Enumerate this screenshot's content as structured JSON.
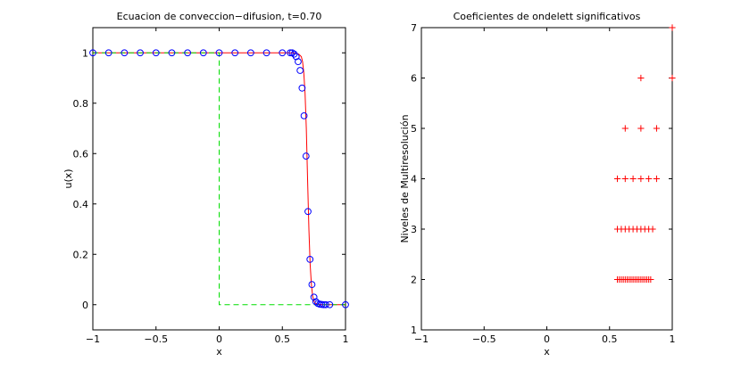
{
  "chart_data": [
    {
      "type": "line",
      "title": "Ecuacion de conveccion−difusion, t=0.70",
      "xlabel": "x",
      "ylabel": "u(x)",
      "xlim": [
        -1,
        1
      ],
      "ylim": [
        -0.1,
        1.1
      ],
      "xticks": [
        -1,
        -0.5,
        0,
        0.5,
        1
      ],
      "xtick_labels": [
        "−1",
        "−0.5",
        "0",
        "0.5",
        "1"
      ],
      "yticks": [
        0,
        0.2,
        0.4,
        0.6,
        0.8,
        1
      ],
      "ytick_labels": [
        "0",
        "0.2",
        "0.4",
        "0.6",
        "0.8",
        "1"
      ],
      "grid": false,
      "legend": "none",
      "series": [
        {
          "style": "solid",
          "color": "#ff0000",
          "x": [
            -1,
            0.55,
            0.6,
            0.63,
            0.65,
            0.66,
            0.67,
            0.68,
            0.69,
            0.7,
            0.71,
            0.72,
            0.73,
            0.74,
            0.75,
            0.76,
            0.78,
            0.82,
            1.0
          ],
          "y": [
            1,
            1,
            0.999,
            0.995,
            0.985,
            0.965,
            0.92,
            0.84,
            0.7,
            0.5,
            0.3,
            0.16,
            0.08,
            0.035,
            0.015,
            0.006,
            0.002,
            0,
            0
          ]
        },
        {
          "style": "dashed",
          "color": "#00dd00",
          "x": [
            -1,
            0,
            0,
            1
          ],
          "y": [
            1,
            1,
            0,
            0
          ]
        },
        {
          "style": "markers",
          "marker": "circle",
          "color": "#0000ff",
          "x": [
            -1.0,
            -0.875,
            -0.75,
            -0.625,
            -0.5,
            -0.375,
            -0.25,
            -0.125,
            0.0,
            0.125,
            0.25,
            0.375,
            0.5,
            0.5625,
            0.5781,
            0.5938,
            0.6094,
            0.625,
            0.6406,
            0.6563,
            0.6719,
            0.6875,
            0.7031,
            0.7188,
            0.7344,
            0.75,
            0.7656,
            0.7813,
            0.7969,
            0.8125,
            0.8281,
            0.8438,
            0.875,
            1.0
          ],
          "y": [
            1,
            1,
            1,
            1,
            1,
            1,
            1,
            1,
            1,
            1,
            1,
            1,
            1,
            1,
            1,
            0.995,
            0.985,
            0.965,
            0.93,
            0.86,
            0.75,
            0.59,
            0.37,
            0.18,
            0.08,
            0.03,
            0.012,
            0.005,
            0.002,
            0.001,
            0,
            0,
            0,
            0
          ]
        }
      ]
    },
    {
      "type": "scatter",
      "title": "Coeficientes de ondelett significativos",
      "xlabel": "x",
      "ylabel": "Niveles de Multiresolución",
      "xlim": [
        -1,
        1
      ],
      "ylim": [
        1,
        7
      ],
      "xticks": [
        -1,
        -0.5,
        0,
        0.5,
        1
      ],
      "xtick_labels": [
        "−1",
        "−0.5",
        "0",
        "0.5",
        "1"
      ],
      "yticks": [
        1,
        2,
        3,
        4,
        5,
        6,
        7
      ],
      "ytick_labels": [
        "1",
        "2",
        "3",
        "4",
        "5",
        "6",
        "7"
      ],
      "grid": false,
      "legend": "none",
      "series": [
        {
          "marker": "plus",
          "color": "#ff0000",
          "x": [
            1.0,
            0.75,
            1.0,
            0.625,
            0.75,
            0.875,
            0.5625,
            0.625,
            0.6875,
            0.75,
            0.8125,
            0.875,
            0.5625,
            0.5938,
            0.625,
            0.6563,
            0.6875,
            0.7188,
            0.75,
            0.7813,
            0.8125,
            0.8438,
            0.5625,
            0.5781,
            0.5938,
            0.6094,
            0.625,
            0.6406,
            0.6563,
            0.6719,
            0.6875,
            0.7031,
            0.7188,
            0.7344,
            0.75,
            0.7656,
            0.7813,
            0.7969,
            0.8125,
            0.8281
          ],
          "y": [
            7,
            6,
            6,
            5,
            5,
            5,
            4,
            4,
            4,
            4,
            4,
            4,
            3,
            3,
            3,
            3,
            3,
            3,
            3,
            3,
            3,
            3,
            2,
            2,
            2,
            2,
            2,
            2,
            2,
            2,
            2,
            2,
            2,
            2,
            2,
            2,
            2,
            2,
            2,
            2
          ]
        }
      ]
    }
  ]
}
